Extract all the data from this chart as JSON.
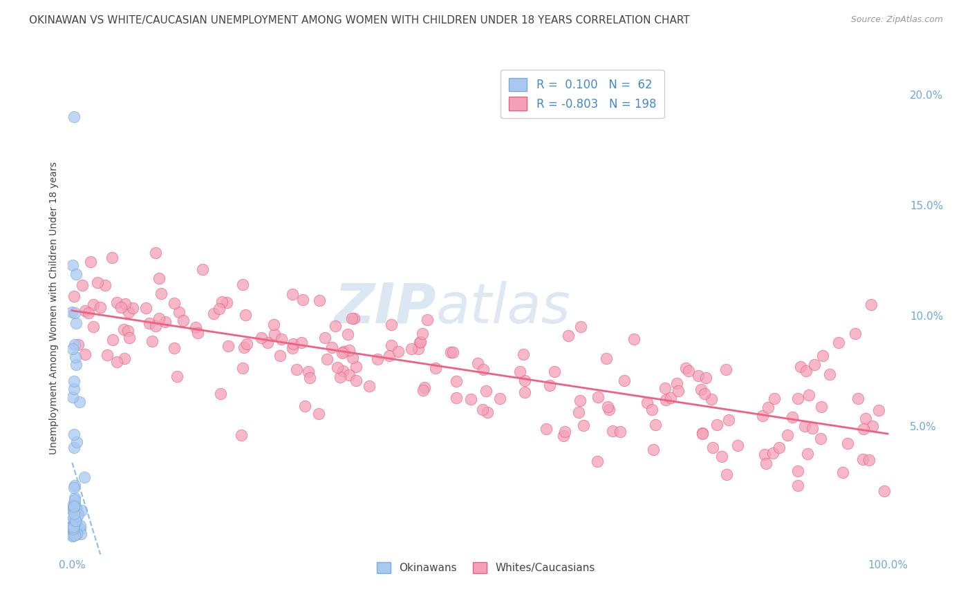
{
  "title": "OKINAWAN VS WHITE/CAUCASIAN UNEMPLOYMENT AMONG WOMEN WITH CHILDREN UNDER 18 YEARS CORRELATION CHART",
  "source": "Source: ZipAtlas.com",
  "ylabel": "Unemployment Among Women with Children Under 18 years",
  "right_yticks": [
    "5.0%",
    "10.0%",
    "15.0%",
    "20.0%"
  ],
  "right_ytick_vals": [
    0.05,
    0.1,
    0.15,
    0.2
  ],
  "okinawan_color": "#a8c8f0",
  "okinawan_edge": "#7aaad8",
  "caucasian_color": "#f4a0b8",
  "caucasian_edge": "#e8607a",
  "trendline_okinawan": "#90bce8",
  "trendline_caucasian": "#f06080",
  "watermark_zip": "ZIP",
  "watermark_atlas": "atlas",
  "background_color": "#ffffff",
  "grid_color": "#d8d8d8",
  "title_fontsize": 11,
  "source_fontsize": 9,
  "axis_label_color": "#6baad8",
  "legend_label_color": "#4488cc",
  "text_color": "#444444"
}
